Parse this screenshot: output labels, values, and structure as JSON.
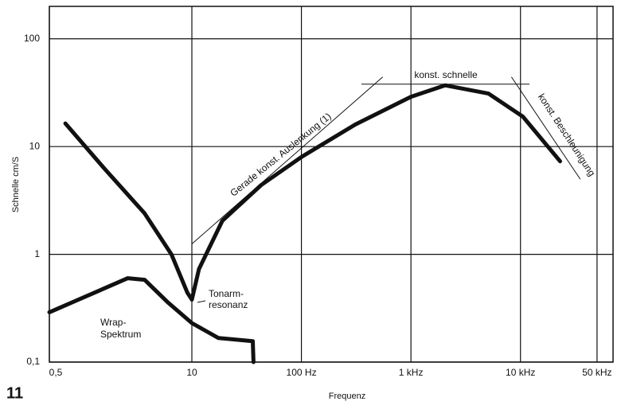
{
  "chart_data": {
    "type": "line",
    "figure_number": "11",
    "xlabel": "Frequenz",
    "ylabel": "Schnelle cm/S",
    "xscale": "log",
    "yscale": "log",
    "xlim": [
      0.5,
      70000
    ],
    "ylim": [
      0.1,
      200
    ],
    "xticks": [
      {
        "value": 0.5,
        "label": "0,5"
      },
      10,
      {
        "value": 100,
        "label": "100 Hz"
      },
      {
        "value": 1000,
        "label": "1 kHz"
      },
      {
        "value": 10000,
        "label": "10 kHz"
      },
      {
        "value": 50000,
        "label": "50 kHz"
      }
    ],
    "yticks": [
      {
        "value": 0.1,
        "label": "0,1"
      },
      1,
      10,
      100
    ],
    "grid": true,
    "series": [
      {
        "color": "#111111",
        "line_width": 5,
        "x": [
          0.7,
          1.6,
          3.7,
          6.5,
          9.1,
          10,
          11.6,
          19,
          43,
          100,
          310,
          1000,
          2050,
          5100,
          10500,
          23000
        ],
        "values": [
          16.4,
          6.2,
          2.4,
          1.0,
          0.44,
          0.38,
          0.73,
          2.05,
          4.4,
          8,
          16,
          29,
          37,
          31,
          19,
          7.3
        ]
      },
      {
        "color": "#111111",
        "line_width": 5,
        "x": [
          0.5,
          2.6,
          3.7,
          6.0,
          10,
          17.5,
          36,
          36.5
        ],
        "values": [
          0.29,
          0.6,
          0.58,
          0.36,
          0.23,
          0.167,
          0.156,
          0.1
        ]
      },
      {
        "color": "#111111",
        "line_width": 1,
        "x": [
          10,
          550
        ],
        "values": [
          1.25,
          44
        ]
      },
      {
        "color": "#111111",
        "line_width": 1,
        "x": [
          355,
          12000
        ],
        "values": [
          38,
          38
        ]
      },
      {
        "color": "#111111",
        "line_width": 1,
        "x": [
          8300,
          35000
        ],
        "values": [
          44,
          5.0
        ]
      }
    ],
    "annotations": [
      "Tonarm-",
      "resonanz",
      "Wrap-",
      "Spektrum",
      "Gerade konst. Auslenkung (1)",
      "konst. schnelle",
      "konst. Beschleunigung"
    ]
  }
}
